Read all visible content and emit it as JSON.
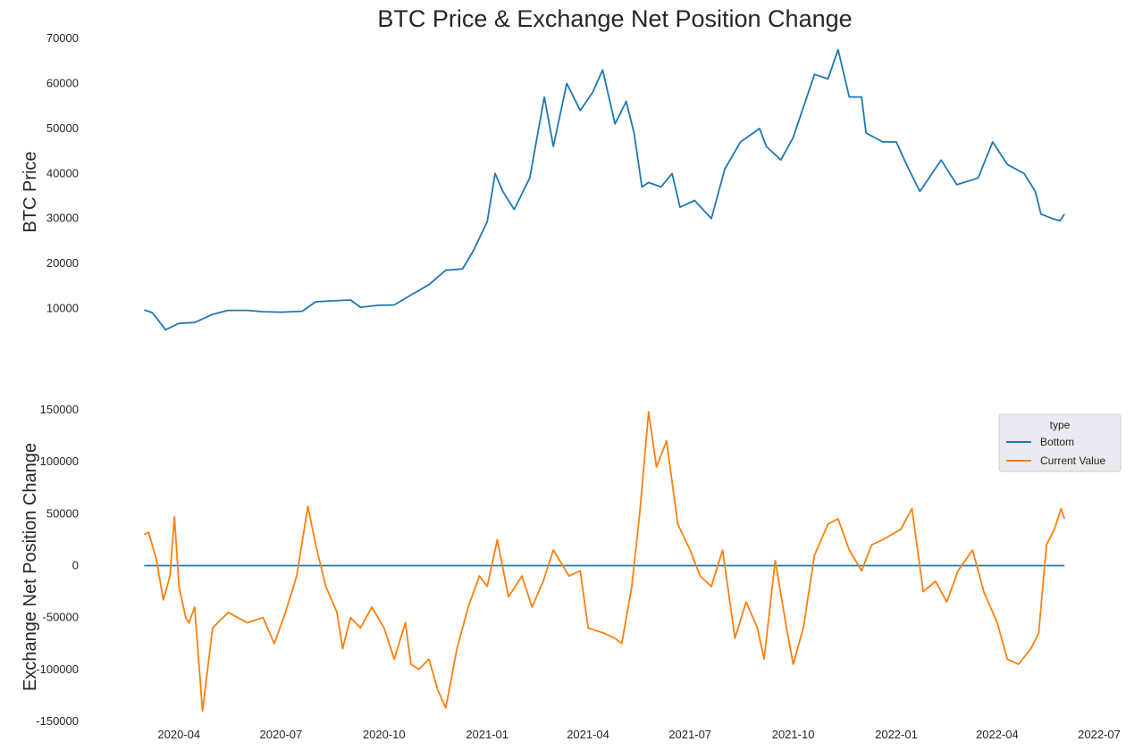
{
  "chart_data": [
    {
      "type": "line",
      "title": "BTC Price & Exchange Net Position Change",
      "xlabel": "",
      "ylabel": "BTC  Price",
      "ylim": [
        0,
        70000
      ],
      "yticks": [
        10000,
        20000,
        30000,
        40000,
        50000,
        60000,
        70000
      ],
      "xlim": [
        "2020-02-01",
        "2022-07-01"
      ],
      "grid": false,
      "color": "#1f77b4",
      "series": [
        {
          "x": [
            "2020-03-01",
            "2020-03-08",
            "2020-03-12",
            "2020-03-20",
            "2020-04-01",
            "2020-04-15",
            "2020-05-01",
            "2020-05-15",
            "2020-06-01",
            "2020-06-15",
            "2020-07-01",
            "2020-07-20",
            "2020-08-01",
            "2020-08-15",
            "2020-09-01",
            "2020-09-10",
            "2020-09-25",
            "2020-10-10",
            "2020-10-25",
            "2020-11-10",
            "2020-11-25",
            "2020-12-10",
            "2020-12-20",
            "2021-01-01",
            "2021-01-08",
            "2021-01-15",
            "2021-01-25",
            "2021-02-08",
            "2021-02-21",
            "2021-03-01",
            "2021-03-13",
            "2021-03-25",
            "2021-04-05",
            "2021-04-14",
            "2021-04-25",
            "2021-05-05",
            "2021-05-12",
            "2021-05-19",
            "2021-05-25",
            "2021-06-05",
            "2021-06-15",
            "2021-06-22",
            "2021-07-05",
            "2021-07-20",
            "2021-08-01",
            "2021-08-15",
            "2021-09-01",
            "2021-09-07",
            "2021-09-20",
            "2021-10-01",
            "2021-10-20",
            "2021-11-01",
            "2021-11-10",
            "2021-11-20",
            "2021-12-01",
            "2021-12-05",
            "2021-12-20",
            "2022-01-01",
            "2022-01-10",
            "2022-01-22",
            "2022-02-10",
            "2022-02-24",
            "2022-03-15",
            "2022-03-28",
            "2022-04-10",
            "2022-04-25",
            "2022-05-05",
            "2022-05-10",
            "2022-05-20",
            "2022-05-27",
            "2022-05-31"
          ],
          "y": [
            9700,
            9100,
            7900,
            5300,
            6700,
            6900,
            8700,
            9600,
            9600,
            9300,
            9200,
            9400,
            11500,
            11700,
            11900,
            10300,
            10700,
            10800,
            13000,
            15300,
            18500,
            18800,
            23000,
            29300,
            40000,
            36000,
            32000,
            39000,
            57000,
            46000,
            60000,
            54000,
            58000,
            63000,
            51000,
            56000,
            49000,
            37000,
            38000,
            37000,
            40000,
            32500,
            34000,
            30000,
            41000,
            47000,
            50000,
            46000,
            43000,
            48000,
            62000,
            61000,
            67500,
            57000,
            57000,
            49000,
            47000,
            47000,
            42000,
            36000,
            43000,
            37500,
            39000,
            47000,
            42000,
            40000,
            36000,
            31000,
            30000,
            29500,
            31000
          ]
        }
      ]
    },
    {
      "type": "line",
      "title": "",
      "xlabel": "",
      "ylabel": "Exchange Net Position Change",
      "ylim": [
        -150000,
        150000
      ],
      "yticks": [
        -150000,
        -100000,
        -50000,
        0,
        50000,
        100000,
        150000
      ],
      "xlim": [
        "2020-02-01",
        "2022-07-01"
      ],
      "xticks": [
        "2020-04",
        "2020-07",
        "2020-10",
        "2021-01",
        "2021-04",
        "2021-07",
        "2021-10",
        "2022-01",
        "2022-04",
        "2022-07"
      ],
      "grid": false,
      "legend": {
        "title": "type",
        "position": "top-right"
      },
      "series": [
        {
          "name": "Bottom",
          "color": "#1f77b4",
          "x": [
            "2020-03-01",
            "2022-05-31"
          ],
          "y": [
            0,
            0
          ]
        },
        {
          "name": "Current Value",
          "color": "#ff7f0e",
          "x": [
            "2020-03-01",
            "2020-03-05",
            "2020-03-12",
            "2020-03-18",
            "2020-03-24",
            "2020-03-28",
            "2020-04-01",
            "2020-04-07",
            "2020-04-10",
            "2020-04-15",
            "2020-04-22",
            "2020-05-01",
            "2020-05-15",
            "2020-06-01",
            "2020-06-15",
            "2020-06-25",
            "2020-07-05",
            "2020-07-15",
            "2020-07-25",
            "2020-08-01",
            "2020-08-10",
            "2020-08-20",
            "2020-08-25",
            "2020-09-01",
            "2020-09-10",
            "2020-09-20",
            "2020-10-01",
            "2020-10-10",
            "2020-10-20",
            "2020-10-25",
            "2020-11-01",
            "2020-11-10",
            "2020-11-18",
            "2020-11-25",
            "2020-12-05",
            "2020-12-15",
            "2020-12-25",
            "2021-01-01",
            "2021-01-10",
            "2021-01-20",
            "2021-02-01",
            "2021-02-10",
            "2021-02-20",
            "2021-03-01",
            "2021-03-15",
            "2021-03-25",
            "2021-04-01",
            "2021-04-15",
            "2021-04-25",
            "2021-05-01",
            "2021-05-10",
            "2021-05-17",
            "2021-05-25",
            "2021-06-01",
            "2021-06-10",
            "2021-06-20",
            "2021-07-01",
            "2021-07-10",
            "2021-07-20",
            "2021-07-30",
            "2021-08-10",
            "2021-08-20",
            "2021-08-30",
            "2021-09-05",
            "2021-09-15",
            "2021-09-25",
            "2021-10-01",
            "2021-10-10",
            "2021-10-20",
            "2021-11-01",
            "2021-11-10",
            "2021-11-20",
            "2021-12-01",
            "2021-12-10",
            "2021-12-20",
            "2021-12-28",
            "2022-01-05",
            "2022-01-15",
            "2022-01-25",
            "2022-02-05",
            "2022-02-15",
            "2022-02-25",
            "2022-03-10",
            "2022-03-20",
            "2022-04-01",
            "2022-04-10",
            "2022-04-20",
            "2022-05-01",
            "2022-05-08",
            "2022-05-15",
            "2022-05-22",
            "2022-05-28",
            "2022-05-31"
          ],
          "y": [
            30000,
            32000,
            5000,
            -33000,
            -10000,
            47000,
            -20000,
            -50000,
            -55000,
            -40000,
            -140000,
            -60000,
            -45000,
            -55000,
            -50000,
            -75000,
            -45000,
            -10000,
            57000,
            20000,
            -20000,
            -45000,
            -80000,
            -50000,
            -60000,
            -40000,
            -60000,
            -90000,
            -55000,
            -95000,
            -100000,
            -90000,
            -120000,
            -137000,
            -80000,
            -40000,
            -10000,
            -20000,
            25000,
            -30000,
            -10000,
            -40000,
            -15000,
            15000,
            -10000,
            -5000,
            -60000,
            -65000,
            -70000,
            -75000,
            -20000,
            50000,
            148000,
            95000,
            120000,
            40000,
            15000,
            -10000,
            -20000,
            15000,
            -70000,
            -35000,
            -60000,
            -90000,
            5000,
            -60000,
            -95000,
            -60000,
            10000,
            40000,
            45000,
            15000,
            -5000,
            20000,
            25000,
            30000,
            35000,
            55000,
            -25000,
            -15000,
            -35000,
            -5000,
            15000,
            -25000,
            -55000,
            -90000,
            -95000,
            -80000,
            -65000,
            20000,
            35000,
            55000,
            45000
          ]
        }
      ]
    }
  ]
}
